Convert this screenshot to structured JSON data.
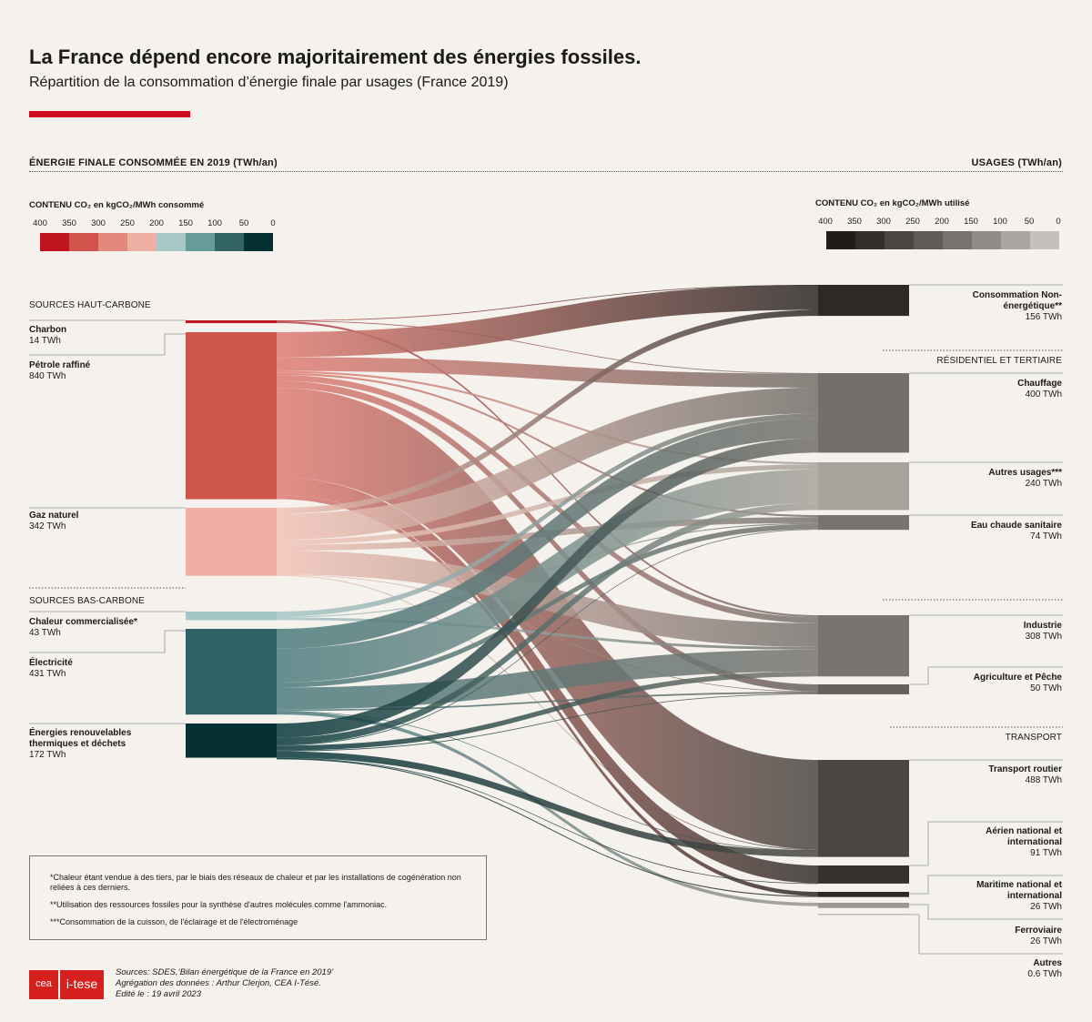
{
  "header": {
    "title": "La France dépend encore majoritairement des énergies fossiles.",
    "subtitle": "Répartition de la consommation d’énergie finale par usages (France 2019)"
  },
  "sections": {
    "left": "ÉNERGIE FINALE CONSOMMÉE EN 2019 (TWh/an)",
    "right": "USAGES (TWh/an)"
  },
  "legend_left": {
    "title": "CONTENU CO₂ en kgCO₂/MWh consommé",
    "ticks": [
      "400",
      "350",
      "300",
      "250",
      "200",
      "150",
      "100",
      "50",
      "0"
    ],
    "colors": [
      "#c0141f",
      "#d1534b",
      "#e3887d",
      "#efb0a4",
      "#a6c9c8",
      "#679a9b",
      "#336566",
      "#062f33"
    ]
  },
  "legend_right": {
    "title": "CONTENU CO₂ en kgCO₂/MWh utilisé",
    "ticks": [
      "400",
      "350",
      "300",
      "250",
      "200",
      "150",
      "100",
      "50",
      "0"
    ],
    "colors": [
      "#1f1c19",
      "#33302c",
      "#4a4743",
      "#5f5c58",
      "#76736f",
      "#8f8b87",
      "#a9a5a0",
      "#c4c0bb"
    ]
  },
  "groups": {
    "high": "SOURCES HAUT-CARBONE",
    "low": "SOURCES BAS-CARBONE",
    "residential": "RÉSIDENTIEL ET TERTIAIRE",
    "transport": "TRANSPORT"
  },
  "chart_data": {
    "type": "sankey",
    "unit": "TWh",
    "sources": [
      {
        "name": "Charbon",
        "value": 14,
        "label": "14 TWh"
      },
      {
        "name": "Pétrole raffiné",
        "value": 840,
        "label": "840 TWh"
      },
      {
        "name": "Gaz naturel",
        "value": 342,
        "label": "342 TWh"
      },
      {
        "name": "Chaleur commercialisée*",
        "value": 43,
        "label": "43 TWh"
      },
      {
        "name": "Électricité",
        "value": 431,
        "label": "431 TWh"
      },
      {
        "name": "Énergies renouvelables thermiques et déchets",
        "value": 172,
        "label": "172 TWh"
      }
    ],
    "uses": [
      {
        "name": "Consommation Non-énergétique**",
        "value": 156,
        "label": "156 TWh"
      },
      {
        "name": "Chauffage",
        "value": 400,
        "label": "400 TWh"
      },
      {
        "name": "Autres usages***",
        "value": 240,
        "label": "240 TWh"
      },
      {
        "name": "Eau chaude sanitaire",
        "value": 74,
        "label": "74 TWh"
      },
      {
        "name": "Industrie",
        "value": 308,
        "label": "308 TWh"
      },
      {
        "name": "Agriculture et Pêche",
        "value": 50,
        "label": "50 TWh"
      },
      {
        "name": "Transport routier",
        "value": 488,
        "label": "488 TWh"
      },
      {
        "name": "Aérien national et international",
        "value": 91,
        "label": "91 TWh"
      },
      {
        "name": "Maritime national et international",
        "value": 26,
        "label": "26 TWh"
      },
      {
        "name": "Ferroviaire",
        "value": 26,
        "label": "26 TWh"
      },
      {
        "name": "Autres",
        "value": 0.6,
        "label": "0.6 TWh"
      }
    ],
    "flows": [
      {
        "from": "Charbon",
        "to": "Consommation Non-énergétique**",
        "value": 1
      },
      {
        "from": "Charbon",
        "to": "Chauffage",
        "value": 3
      },
      {
        "from": "Charbon",
        "to": "Industrie",
        "value": 10
      },
      {
        "from": "Pétrole raffiné",
        "to": "Consommation Non-énergétique**",
        "value": 125
      },
      {
        "from": "Pétrole raffiné",
        "to": "Chauffage",
        "value": 70
      },
      {
        "from": "Pétrole raffiné",
        "to": "Autres usages***",
        "value": 10
      },
      {
        "from": "Pétrole raffiné",
        "to": "Eau chaude sanitaire",
        "value": 10
      },
      {
        "from": "Pétrole raffiné",
        "to": "Industrie",
        "value": 30
      },
      {
        "from": "Pétrole raffiné",
        "to": "Agriculture et Pêche",
        "value": 35
      },
      {
        "from": "Pétrole raffiné",
        "to": "Transport routier",
        "value": 450
      },
      {
        "from": "Pétrole raffiné",
        "to": "Aérien national et international",
        "value": 89
      },
      {
        "from": "Pétrole raffiné",
        "to": "Maritime national et international",
        "value": 21
      },
      {
        "from": "Gaz naturel",
        "to": "Consommation Non-énergétique**",
        "value": 30
      },
      {
        "from": "Gaz naturel",
        "to": "Chauffage",
        "value": 130
      },
      {
        "from": "Gaz naturel",
        "to": "Autres usages***",
        "value": 25
      },
      {
        "from": "Gaz naturel",
        "to": "Eau chaude sanitaire",
        "value": 30
      },
      {
        "from": "Gaz naturel",
        "to": "Industrie",
        "value": 120
      },
      {
        "from": "Gaz naturel",
        "to": "Agriculture et Pêche",
        "value": 3
      },
      {
        "from": "Gaz naturel",
        "to": "Transport routier",
        "value": 4
      },
      {
        "from": "Chaleur commercialisée*",
        "to": "Chauffage",
        "value": 25
      },
      {
        "from": "Chaleur commercialisée*",
        "to": "Eau chaude sanitaire",
        "value": 5
      },
      {
        "from": "Chaleur commercialisée*",
        "to": "Industrie",
        "value": 13
      },
      {
        "from": "Électricité",
        "to": "Chauffage",
        "value": 100
      },
      {
        "from": "Électricité",
        "to": "Autres usages***",
        "value": 170
      },
      {
        "from": "Électricité",
        "to": "Eau chaude sanitaire",
        "value": 25
      },
      {
        "from": "Électricité",
        "to": "Industrie",
        "value": 110
      },
      {
        "from": "Électricité",
        "to": "Agriculture et Pêche",
        "value": 8
      },
      {
        "from": "Électricité",
        "to": "Transport routier",
        "value": 1
      },
      {
        "from": "Électricité",
        "to": "Ferroviaire",
        "value": 17
      },
      {
        "from": "Énergies renouvelables thermiques et déchets",
        "to": "Chauffage",
        "value": 72
      },
      {
        "from": "Énergies renouvelables thermiques et déchets",
        "to": "Autres usages***",
        "value": 35
      },
      {
        "from": "Énergies renouvelables thermiques et déchets",
        "to": "Eau chaude sanitaire",
        "value": 4
      },
      {
        "from": "Énergies renouvelables thermiques et déchets",
        "to": "Industrie",
        "value": 25
      },
      {
        "from": "Énergies renouvelables thermiques et déchets",
        "to": "Agriculture et Pêche",
        "value": 4
      },
      {
        "from": "Énergies renouvelables thermiques et déchets",
        "to": "Transport routier",
        "value": 33
      },
      {
        "from": "Énergies renouvelables thermiques et déchets",
        "to": "Aérien national et international",
        "value": 2
      },
      {
        "from": "Énergies renouvelables thermiques et déchets",
        "to": "Maritime national et international",
        "value": 5
      }
    ]
  },
  "notes": [
    "*Chaleur étant vendue à des tiers, par le biais des réseaux de chaleur et par les installations de cogénération non reliées à ces derniers.",
    "**Utilisation des ressources fossiles pour la synthèse d'autres molécules comme l'ammoniac.",
    "***Consommation de la cuisson, de l'éclairage et de l'électroménage"
  ],
  "footer": {
    "logo_cea": "cea",
    "logo_itese": "i-tese",
    "sources": "Sources: SDES,‘Bilan énergétique de la France en 2019’",
    "aggregation": "Agrégation des données : Arthur Clerjon, CEA I-Tésé.",
    "edited": "Edité le : 19  avril 2023"
  }
}
